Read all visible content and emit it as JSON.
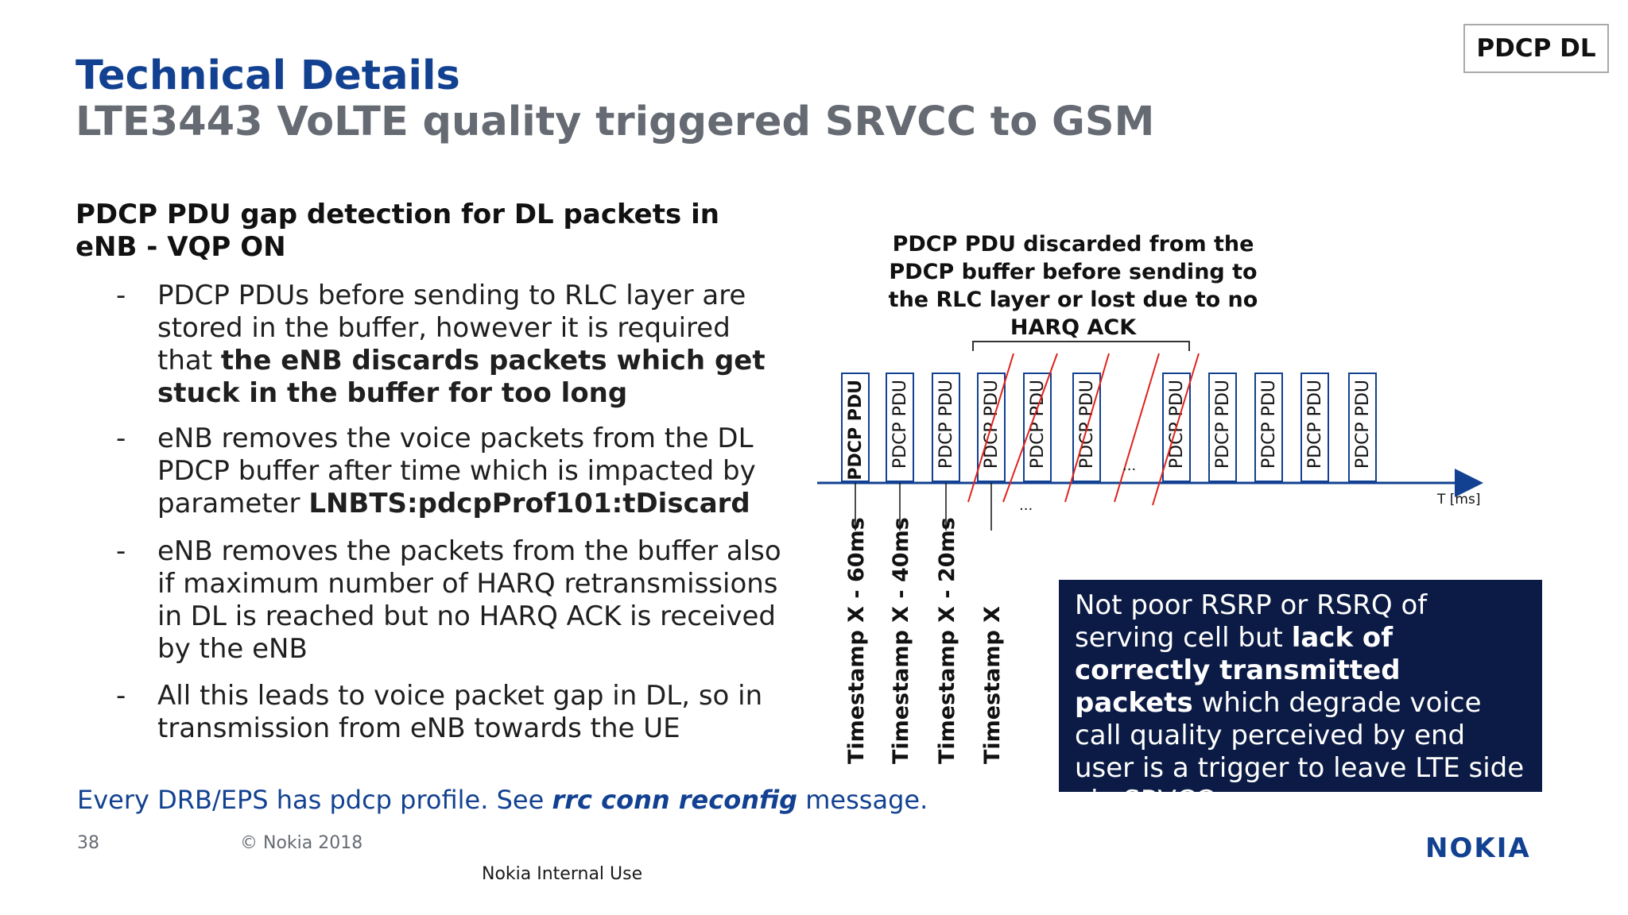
{
  "header": {
    "title": "Technical Details",
    "subtitle": "LTE3443 VoLTE quality triggered SRVCC to GSM",
    "tag": "PDCP DL"
  },
  "content": {
    "heading": "PDCP PDU gap detection for DL packets in eNB - VQP ON",
    "bullets": [
      {
        "dash": "-",
        "pre": "PDCP PDUs before sending to RLC layer are stored in the buffer, however it is required that ",
        "bold": "the eNB discards packets which get stuck in the buffer for too long",
        "post": ""
      },
      {
        "dash": "-",
        "pre": "eNB removes the voice packets from the DL PDCP buffer after time which is impacted by parameter ",
        "bold": "LNBTS:pdcpProf101:tDiscard",
        "post": ""
      },
      {
        "dash": "-",
        "pre": "eNB removes the packets from the buffer also if maximum number of HARQ retransmissions in DL is reached but no HARQ ACK is received by the eNB",
        "bold": "",
        "post": ""
      },
      {
        "dash": "-",
        "pre": "All this leads to voice packet gap in DL, so in transmission from eNB towards the UE",
        "bold": "",
        "post": ""
      }
    ],
    "note": {
      "pre": "Every DRB/EPS has pdcp profile. See ",
      "em": "rrc conn reconfig",
      "post": " message."
    }
  },
  "diagram": {
    "caption": "PDCP PDU discarded from the PDCP buffer before sending to the RLC layer or lost due to no HARQ ACK",
    "pdu_label": "PDCP PDU",
    "axis_label": "T [ms]",
    "ellipsis": "...",
    "timestamps": [
      "Timestamp X - 60ms",
      "Timestamp X - 40ms",
      "Timestamp X - 20ms",
      "Timestamp X"
    ]
  },
  "callout": {
    "parts": [
      {
        "text": "Not poor RSRP or RSRQ of serving cell but ",
        "bold": false
      },
      {
        "text": "lack of correctly transmitted packets",
        "bold": true
      },
      {
        "text": " which degrade voice call quality perceived by end user is a trigger to leave LTE side via SRVCC",
        "bold": false
      }
    ]
  },
  "footer": {
    "page_number": "38",
    "copyright": "© Nokia 2018",
    "classification": "Nokia Internal Use",
    "logo": "NOKIA"
  },
  "colors": {
    "brand_blue": "#124191",
    "callout_bg": "#0b1b45",
    "strike_red": "#e0221b",
    "box_border": "#124191"
  }
}
